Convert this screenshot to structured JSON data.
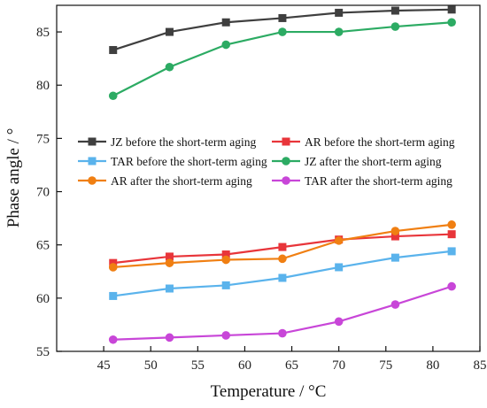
{
  "chart_data": {
    "type": "line",
    "title": "",
    "xlabel": "Temperature / °C",
    "ylabel": "Phase angle / °",
    "xlim": [
      40,
      85
    ],
    "ylim": [
      55,
      87.5
    ],
    "x_ticks": [
      45,
      50,
      55,
      60,
      65,
      70,
      75,
      80,
      85
    ],
    "y_ticks": [
      55,
      60,
      65,
      70,
      75,
      80,
      85
    ],
    "grid": false,
    "legend_position": "middle-left, inside plot (two columns)",
    "x": [
      46,
      52,
      58,
      64,
      70,
      76,
      82
    ],
    "series": [
      {
        "name": "JZ before the short-term aging",
        "color": "#3f3f3f",
        "marker": "square",
        "values": [
          83.3,
          85.0,
          85.9,
          86.3,
          86.8,
          87.0,
          87.1
        ]
      },
      {
        "name": "AR before the short-term aging",
        "color": "#e8353a",
        "marker": "square",
        "values": [
          63.3,
          63.9,
          64.1,
          64.8,
          65.5,
          65.8,
          66.0
        ]
      },
      {
        "name": "TAR before the short-term aging",
        "color": "#5ab3ec",
        "marker": "square",
        "values": [
          60.2,
          60.9,
          61.2,
          61.9,
          62.9,
          63.8,
          64.4
        ]
      },
      {
        "name": "JZ after the short-term aging",
        "color": "#2cab63",
        "marker": "circle",
        "values": [
          79.0,
          81.7,
          83.8,
          85.0,
          85.0,
          85.5,
          85.9
        ]
      },
      {
        "name": "AR after the short-term aging",
        "color": "#f07f12",
        "marker": "circle",
        "values": [
          62.9,
          63.3,
          63.6,
          63.7,
          65.4,
          66.3,
          66.9
        ]
      },
      {
        "name": "TAR after the short-term aging",
        "color": "#c846d8",
        "marker": "circle",
        "values": [
          56.1,
          56.3,
          56.5,
          56.7,
          57.8,
          59.4,
          61.1
        ]
      }
    ]
  }
}
